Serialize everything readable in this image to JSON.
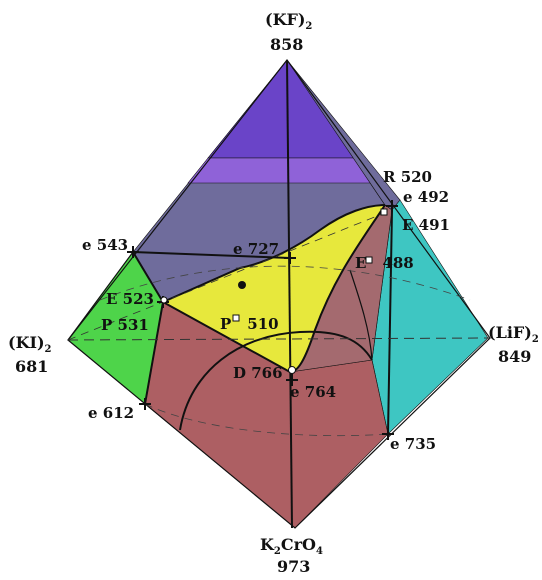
{
  "colors": {
    "kf_region": "#6a44c8",
    "kf_region_band": "#8f62d8",
    "upper_region": "#6f6c9c",
    "ki_region": "#4ed44a",
    "lif_region": "#3ec6c2",
    "k2cro4_region": "#ad5f63",
    "lif_inner_region": "#a46a6f",
    "yellow_region": "#e7e83c",
    "outline": "#111111"
  },
  "vertices": {
    "top": {
      "name": "(KF)",
      "sub": "2",
      "value": "858"
    },
    "left": {
      "name": "(KI)",
      "sub": "2",
      "value": "681"
    },
    "right": {
      "name": "(LiF)",
      "sub": "2",
      "value": "849"
    },
    "bottom": {
      "name_a": "K",
      "sub_a": "2",
      "name_b": "CrO",
      "sub_b": "4",
      "value": "973"
    }
  },
  "points": [
    {
      "label": "R 520"
    },
    {
      "label": "e 492"
    },
    {
      "label": "E 491"
    },
    {
      "label": "E",
      "extra": "488"
    },
    {
      "label": "e 543"
    },
    {
      "label": "e 727"
    },
    {
      "label": "E 523"
    },
    {
      "label": "P 531"
    },
    {
      "label": "P",
      "extra": "510"
    },
    {
      "label": "D 766"
    },
    {
      "label": "e 764"
    },
    {
      "label": "e 612"
    },
    {
      "label": "e 735"
    }
  ]
}
